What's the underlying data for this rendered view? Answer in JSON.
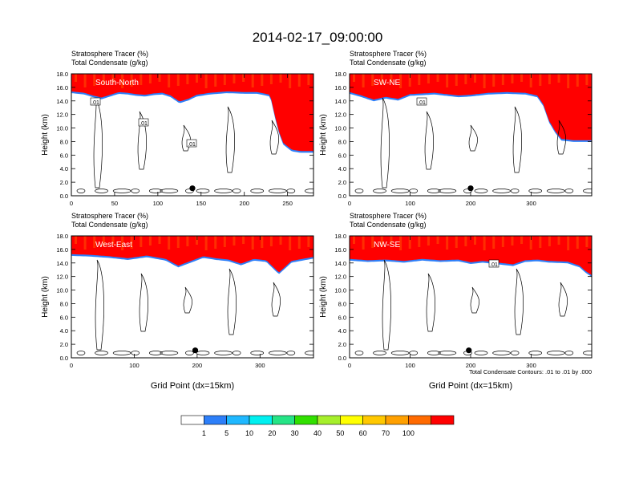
{
  "title": "2014-02-17_09:00:00",
  "colors": [
    "#ffffff",
    "#2d7ff9",
    "#1fb8ff",
    "#00f0f0",
    "#25e486",
    "#31e000",
    "#a6ef2b",
    "#ffff00",
    "#ffc800",
    "#ffa000",
    "#ff6a00",
    "#ff0000"
  ],
  "chart_data": [
    {
      "type": "heatmap",
      "panel_label": "South-North",
      "title_line1": "Stratosphere Tracer   (%)",
      "title_line2": "Total Condensate   (g/kg)",
      "xlabel": "",
      "ylabel": "Height (km)",
      "xlim": [
        0,
        280
      ],
      "ylim": [
        0,
        18
      ],
      "xticks": [
        0,
        50,
        100,
        150,
        200,
        250
      ],
      "yticks": [
        0.0,
        2.0,
        4.0,
        6.0,
        8.0,
        10.0,
        12.0,
        14.0,
        16.0,
        18.0
      ],
      "tracer_profile": {
        "x": [
          0,
          15,
          25,
          35,
          45,
          55,
          65,
          75,
          85,
          95,
          105,
          115,
          125,
          135,
          145,
          160,
          180,
          200,
          215,
          230,
          235,
          240,
          245,
          255,
          265,
          280
        ],
        "height_10pct": [
          15.4,
          15.2,
          14.8,
          14.5,
          14.9,
          15.3,
          15.2,
          15.0,
          14.9,
          15.1,
          15.2,
          14.8,
          13.9,
          14.3,
          14.9,
          15.2,
          15.4,
          15.3,
          15.3,
          14.9,
          12.0,
          9.5,
          7.8,
          6.8,
          6.6,
          6.6
        ]
      },
      "contour_labels": [
        ".01",
        ".01",
        ".01"
      ],
      "point": {
        "x": 140,
        "y": 1.1
      }
    },
    {
      "type": "heatmap",
      "panel_label": "SW-NE",
      "title_line1": "Stratosphere Tracer   (%)",
      "title_line2": "Total Condensate   (g/kg)",
      "xlabel": "",
      "ylabel": "Height (km)",
      "xlim": [
        0,
        400
      ],
      "ylim": [
        0,
        18
      ],
      "xticks": [
        0,
        100,
        200,
        300
      ],
      "yticks": [
        0.0,
        2.0,
        4.0,
        6.0,
        8.0,
        10.0,
        12.0,
        14.0,
        16.0,
        18.0
      ],
      "tracer_profile": {
        "x": [
          0,
          20,
          40,
          60,
          80,
          100,
          120,
          140,
          160,
          180,
          200,
          230,
          260,
          290,
          310,
          320,
          330,
          340,
          350,
          370,
          400
        ],
        "height_10pct": [
          15.3,
          14.8,
          14.2,
          14.6,
          14.3,
          15.0,
          15.1,
          15.2,
          15.0,
          14.8,
          14.9,
          15.2,
          15.3,
          15.2,
          14.8,
          13.5,
          11.0,
          9.5,
          8.4,
          8.2,
          8.2
        ]
      },
      "contour_labels": [
        ".01"
      ],
      "point": {
        "x": 200,
        "y": 1.1
      }
    },
    {
      "type": "heatmap",
      "panel_label": "West-East",
      "title_line1": "Stratosphere Tracer   (%)",
      "title_line2": "Total Condensate   (g/kg)",
      "xlabel": "Grid Point (dx=15km)",
      "ylabel": "Height (km)",
      "xlim": [
        0,
        385
      ],
      "ylim": [
        0,
        18
      ],
      "xticks": [
        0,
        100,
        200,
        300
      ],
      "yticks": [
        0.0,
        2.0,
        4.0,
        6.0,
        8.0,
        10.0,
        12.0,
        14.0,
        16.0,
        18.0
      ],
      "tracer_profile": {
        "x": [
          0,
          30,
          60,
          90,
          120,
          150,
          170,
          190,
          210,
          230,
          250,
          270,
          290,
          310,
          330,
          350,
          385
        ],
        "height_10pct": [
          15.3,
          15.2,
          15.0,
          14.7,
          15.1,
          14.6,
          13.6,
          14.3,
          15.0,
          14.7,
          14.5,
          13.9,
          14.6,
          14.4,
          12.6,
          14.3,
          14.9
        ]
      },
      "contour_labels": [],
      "point": {
        "x": 197,
        "y": 1.1
      }
    },
    {
      "type": "heatmap",
      "panel_label": "NW-SE",
      "title_line1": "Stratosphere Tracer   (%)",
      "title_line2": "Total Condensate   (g/kg)",
      "xlabel": "Grid Point (dx=15km)",
      "ylabel": "Height (km)",
      "xlim": [
        0,
        400
      ],
      "ylim": [
        0,
        18
      ],
      "xticks": [
        0,
        100,
        200,
        300
      ],
      "yticks": [
        0.0,
        2.0,
        4.0,
        6.0,
        8.0,
        10.0,
        12.0,
        14.0,
        16.0,
        18.0
      ],
      "tracer_profile": {
        "x": [
          0,
          30,
          60,
          90,
          120,
          150,
          180,
          200,
          220,
          250,
          270,
          290,
          310,
          330,
          360,
          380,
          390,
          400
        ],
        "height_10pct": [
          14.6,
          14.4,
          14.5,
          14.3,
          14.6,
          14.4,
          14.5,
          14.1,
          14.3,
          14.0,
          13.8,
          14.4,
          14.5,
          14.3,
          14.2,
          13.6,
          12.8,
          12.2
        ]
      },
      "contour_labels": [
        ".01"
      ],
      "point": {
        "x": 197,
        "y": 1.1
      },
      "footnote": "Total Condensate Contours: .01 to .01 by .000"
    }
  ],
  "colorbar": {
    "labels": [
      "1",
      "5",
      "10",
      "20",
      "30",
      "40",
      "50",
      "60",
      "70",
      "100"
    ],
    "colors": [
      "#ffffff",
      "#2d7ff9",
      "#1fb8ff",
      "#00f0f0",
      "#25e486",
      "#31e000",
      "#a6ef2b",
      "#ffff00",
      "#ffc800",
      "#ffa000",
      "#ff6a00",
      "#ff0000"
    ]
  }
}
